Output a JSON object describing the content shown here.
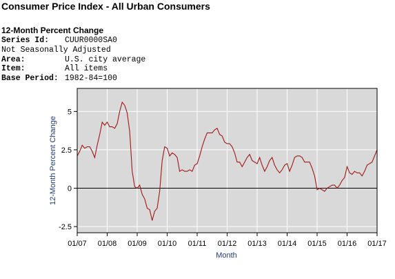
{
  "header": {
    "title": "Consumer Price Index - All Urban Consumers",
    "subtitle": "12-Month Percent Change"
  },
  "meta": [
    {
      "label": "Series Id:",
      "value": "CUUR0000SA0"
    },
    {
      "label": "Not Seasonally Adjusted",
      "value": ""
    },
    {
      "label": "Area:",
      "value": "U.S. city average"
    },
    {
      "label": "Item:",
      "value": "All items"
    },
    {
      "label": "Base Period:",
      "value": "1982-84=100"
    }
  ],
  "colors": {
    "plot_bg": "#d9d9d9",
    "line": "#a31515",
    "axis_title": "#1f3d7a",
    "grid": "#ffffff"
  },
  "chart_data": {
    "type": "line",
    "title": "",
    "xlabel": "Month",
    "ylabel": "12-Month Percent Change",
    "ylim": [
      -2.9,
      6.5
    ],
    "xlim": [
      "2007-01",
      "2017-01"
    ],
    "yticks": [
      -2.5,
      0,
      2.5,
      5
    ],
    "ytick_labels": [
      "-2.5",
      "0",
      "2.5",
      "5"
    ],
    "xtick_labels": [
      "01/07",
      "01/08",
      "01/09",
      "01/10",
      "01/11",
      "01/12",
      "01/13",
      "01/14",
      "01/15",
      "01/16",
      "01/17"
    ],
    "grid": true,
    "zero_line": true,
    "series": [
      {
        "name": "",
        "x": [
          "2007-01",
          "2007-02",
          "2007-03",
          "2007-04",
          "2007-05",
          "2007-06",
          "2007-07",
          "2007-08",
          "2007-09",
          "2007-10",
          "2007-11",
          "2007-12",
          "2008-01",
          "2008-02",
          "2008-03",
          "2008-04",
          "2008-05",
          "2008-06",
          "2008-07",
          "2008-08",
          "2008-09",
          "2008-10",
          "2008-11",
          "2008-12",
          "2009-01",
          "2009-02",
          "2009-03",
          "2009-04",
          "2009-05",
          "2009-06",
          "2009-07",
          "2009-08",
          "2009-09",
          "2009-10",
          "2009-11",
          "2009-12",
          "2010-01",
          "2010-02",
          "2010-03",
          "2010-04",
          "2010-05",
          "2010-06",
          "2010-07",
          "2010-08",
          "2010-09",
          "2010-10",
          "2010-11",
          "2010-12",
          "2011-01",
          "2011-02",
          "2011-03",
          "2011-04",
          "2011-05",
          "2011-06",
          "2011-07",
          "2011-08",
          "2011-09",
          "2011-10",
          "2011-11",
          "2011-12",
          "2012-01",
          "2012-02",
          "2012-03",
          "2012-04",
          "2012-05",
          "2012-06",
          "2012-07",
          "2012-08",
          "2012-09",
          "2012-10",
          "2012-11",
          "2012-12",
          "2013-01",
          "2013-02",
          "2013-03",
          "2013-04",
          "2013-05",
          "2013-06",
          "2013-07",
          "2013-08",
          "2013-09",
          "2013-10",
          "2013-11",
          "2013-12",
          "2014-01",
          "2014-02",
          "2014-03",
          "2014-04",
          "2014-05",
          "2014-06",
          "2014-07",
          "2014-08",
          "2014-09",
          "2014-10",
          "2014-11",
          "2014-12",
          "2015-01",
          "2015-02",
          "2015-03",
          "2015-04",
          "2015-05",
          "2015-06",
          "2015-07",
          "2015-08",
          "2015-09",
          "2015-10",
          "2015-11",
          "2015-12",
          "2016-01",
          "2016-02",
          "2016-03",
          "2016-04",
          "2016-05",
          "2016-06",
          "2016-07",
          "2016-08",
          "2016-09",
          "2016-10",
          "2016-11",
          "2016-12",
          "2017-01"
        ],
        "values": [
          2.1,
          2.4,
          2.8,
          2.6,
          2.7,
          2.7,
          2.4,
          2.0,
          2.8,
          3.5,
          4.3,
          4.1,
          4.3,
          4.0,
          4.0,
          3.9,
          4.2,
          5.0,
          5.6,
          5.4,
          4.9,
          3.7,
          1.1,
          0.1,
          0.0,
          0.2,
          -0.4,
          -0.7,
          -1.3,
          -1.4,
          -2.1,
          -1.5,
          -1.3,
          -0.2,
          1.8,
          2.7,
          2.6,
          2.1,
          2.3,
          2.2,
          2.0,
          1.1,
          1.2,
          1.1,
          1.1,
          1.2,
          1.1,
          1.5,
          1.6,
          2.1,
          2.7,
          3.2,
          3.6,
          3.6,
          3.6,
          3.8,
          3.9,
          3.5,
          3.4,
          3.0,
          2.9,
          2.9,
          2.7,
          2.3,
          1.7,
          1.7,
          1.4,
          1.7,
          2.0,
          2.2,
          1.8,
          1.7,
          1.6,
          2.0,
          1.5,
          1.1,
          1.4,
          1.8,
          2.0,
          1.5,
          1.2,
          1.0,
          1.2,
          1.5,
          1.6,
          1.1,
          1.5,
          2.0,
          2.1,
          2.1,
          2.0,
          1.7,
          1.7,
          1.7,
          1.3,
          0.8,
          -0.1,
          0.0,
          -0.1,
          -0.2,
          0.0,
          0.1,
          0.2,
          0.2,
          0.0,
          0.2,
          0.5,
          0.7,
          1.4,
          1.0,
          0.9,
          1.1,
          1.0,
          1.0,
          0.8,
          1.1,
          1.5,
          1.6,
          1.7,
          2.1,
          2.5
        ]
      }
    ]
  }
}
